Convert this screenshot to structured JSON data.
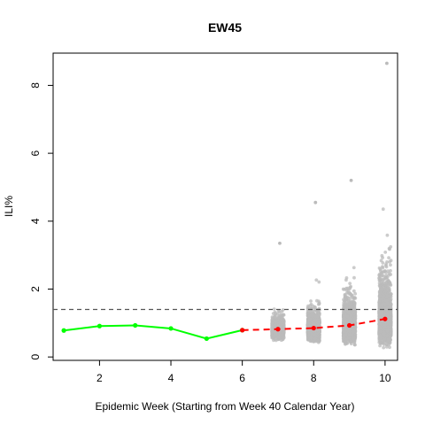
{
  "chart_data": {
    "type": "scatter",
    "title": "EW45",
    "xlabel": "Epidemic Week (Starting from Week 40 Calendar Year)",
    "ylabel": "ILI%",
    "xlim": [
      0.7,
      10.35
    ],
    "ylim": [
      -0.1,
      8.95
    ],
    "x_ticks": [
      2,
      4,
      6,
      8,
      10
    ],
    "y_ticks": [
      0,
      2,
      4,
      6,
      8
    ],
    "grid": false,
    "legend": "none",
    "baseline": {
      "y": 1.4,
      "style": "dashed",
      "color": "#555555"
    },
    "series": [
      {
        "style": "solid-line-points",
        "color": "#00ff00",
        "x": [
          1,
          2,
          3,
          4,
          5,
          6
        ],
        "y": [
          0.78,
          0.91,
          0.93,
          0.84,
          0.54,
          0.79
        ]
      },
      {
        "style": "dashed-line-points",
        "color": "#ff0000",
        "x": [
          6,
          7,
          8,
          9,
          10
        ],
        "y": [
          0.79,
          0.82,
          0.85,
          0.93,
          1.12
        ]
      }
    ],
    "simulations": {
      "color": "#bbbbbb",
      "weeks": [
        7,
        8,
        9,
        10
      ],
      "counts": [
        900,
        1100,
        1300,
        1500
      ],
      "medians": [
        0.82,
        0.85,
        0.93,
        1.12
      ],
      "spreads": [
        0.18,
        0.25,
        0.32,
        0.4
      ],
      "maxima": [
        3.35,
        4.55,
        5.2,
        8.65
      ]
    }
  }
}
